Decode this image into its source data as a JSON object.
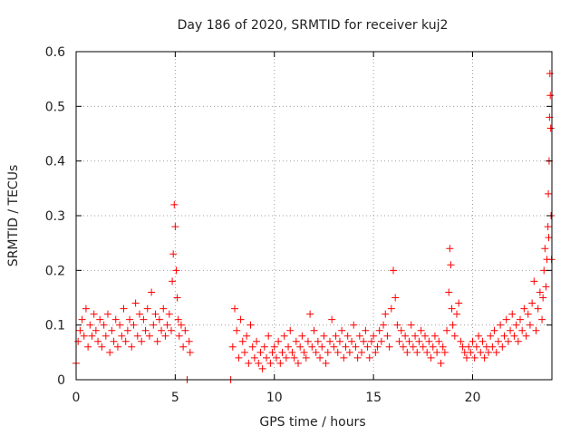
{
  "chart_data": {
    "type": "scatter",
    "title": "Day 186 of 2020, SRMTID for receiver kuj2",
    "xlabel": "GPS time / hours",
    "ylabel": "SRMTID / TECUs",
    "xlim": [
      0,
      24
    ],
    "ylim": [
      0,
      0.6
    ],
    "x_ticks": [
      0,
      5,
      10,
      15,
      20
    ],
    "x_tick_labels": [
      "0",
      "5",
      "10",
      "15",
      "20"
    ],
    "y_ticks": [
      0,
      0.1,
      0.2,
      0.3,
      0.4,
      0.5,
      0.6
    ],
    "y_tick_labels": [
      "0",
      "0.1",
      "0.2",
      "0.3",
      "0.4",
      "0.5",
      "0.6"
    ],
    "grid": true,
    "marker": "+",
    "color": "#ff0000",
    "series": [
      {
        "name": "SRMTID",
        "x": [
          0.0,
          0.1,
          0.2,
          0.3,
          0.4,
          0.5,
          0.6,
          0.7,
          0.8,
          0.9,
          1.0,
          1.1,
          1.2,
          1.3,
          1.4,
          1.5,
          1.6,
          1.7,
          1.8,
          1.9,
          2.0,
          2.1,
          2.2,
          2.3,
          2.4,
          2.5,
          2.6,
          2.7,
          2.8,
          2.9,
          3.0,
          3.1,
          3.2,
          3.3,
          3.4,
          3.5,
          3.6,
          3.7,
          3.8,
          3.9,
          4.0,
          4.1,
          4.2,
          4.3,
          4.4,
          4.5,
          4.6,
          4.7,
          4.8,
          4.85,
          4.9,
          4.95,
          5.0,
          5.05,
          5.1,
          5.15,
          5.2,
          5.3,
          5.4,
          5.5,
          5.6,
          5.7,
          5.75,
          7.8,
          7.9,
          8.0,
          8.1,
          8.2,
          8.3,
          8.4,
          8.5,
          8.6,
          8.7,
          8.8,
          8.9,
          9.0,
          9.1,
          9.2,
          9.3,
          9.4,
          9.5,
          9.6,
          9.7,
          9.8,
          9.9,
          10.0,
          10.1,
          10.2,
          10.3,
          10.4,
          10.5,
          10.6,
          10.7,
          10.8,
          10.9,
          11.0,
          11.1,
          11.2,
          11.3,
          11.4,
          11.5,
          11.6,
          11.7,
          11.8,
          11.9,
          12.0,
          12.1,
          12.2,
          12.3,
          12.4,
          12.5,
          12.6,
          12.7,
          12.8,
          12.9,
          13.0,
          13.1,
          13.2,
          13.3,
          13.4,
          13.5,
          13.6,
          13.7,
          13.8,
          13.9,
          14.0,
          14.1,
          14.2,
          14.3,
          14.4,
          14.5,
          14.6,
          14.7,
          14.8,
          14.9,
          15.0,
          15.1,
          15.2,
          15.3,
          15.4,
          15.5,
          15.6,
          15.7,
          15.8,
          15.9,
          16.0,
          16.1,
          16.2,
          16.3,
          16.4,
          16.5,
          16.6,
          16.7,
          16.8,
          16.9,
          17.0,
          17.1,
          17.2,
          17.3,
          17.4,
          17.5,
          17.6,
          17.7,
          17.8,
          17.9,
          18.0,
          18.1,
          18.2,
          18.3,
          18.4,
          18.5,
          18.6,
          18.7,
          18.8,
          18.85,
          18.9,
          18.95,
          19.0,
          19.1,
          19.2,
          19.3,
          19.4,
          19.5,
          19.6,
          19.7,
          19.8,
          19.9,
          20.0,
          20.1,
          20.2,
          20.3,
          20.4,
          20.5,
          20.6,
          20.7,
          20.8,
          20.9,
          21.0,
          21.1,
          21.2,
          21.3,
          21.4,
          21.5,
          21.6,
          21.7,
          21.8,
          21.9,
          22.0,
          22.1,
          22.2,
          22.3,
          22.4,
          22.5,
          22.6,
          22.7,
          22.8,
          22.9,
          23.0,
          23.1,
          23.2,
          23.3,
          23.4,
          23.5,
          23.55,
          23.6,
          23.65,
          23.7,
          23.75,
          23.8,
          23.82,
          23.84,
          23.86,
          23.88,
          23.9,
          23.92,
          23.94,
          23.96,
          23.98
        ],
        "y": [
          0.03,
          0.07,
          0.09,
          0.11,
          0.08,
          0.13,
          0.06,
          0.1,
          0.08,
          0.12,
          0.09,
          0.07,
          0.11,
          0.06,
          0.1,
          0.08,
          0.12,
          0.05,
          0.09,
          0.07,
          0.11,
          0.06,
          0.1,
          0.08,
          0.13,
          0.07,
          0.09,
          0.11,
          0.06,
          0.1,
          0.14,
          0.08,
          0.12,
          0.07,
          0.11,
          0.09,
          0.13,
          0.08,
          0.16,
          0.1,
          0.12,
          0.07,
          0.11,
          0.09,
          0.13,
          0.08,
          0.1,
          0.12,
          0.09,
          0.18,
          0.23,
          0.32,
          0.28,
          0.2,
          0.15,
          0.11,
          0.08,
          0.1,
          0.06,
          0.09,
          0.0,
          0.07,
          0.05,
          0.0,
          0.06,
          0.13,
          0.09,
          0.04,
          0.11,
          0.07,
          0.05,
          0.08,
          0.03,
          0.1,
          0.06,
          0.04,
          0.07,
          0.03,
          0.05,
          0.02,
          0.06,
          0.04,
          0.08,
          0.03,
          0.05,
          0.06,
          0.04,
          0.07,
          0.03,
          0.05,
          0.08,
          0.04,
          0.06,
          0.09,
          0.05,
          0.04,
          0.07,
          0.03,
          0.06,
          0.08,
          0.05,
          0.04,
          0.07,
          0.12,
          0.06,
          0.09,
          0.05,
          0.07,
          0.04,
          0.06,
          0.08,
          0.03,
          0.05,
          0.07,
          0.11,
          0.06,
          0.08,
          0.05,
          0.07,
          0.09,
          0.04,
          0.06,
          0.08,
          0.05,
          0.07,
          0.1,
          0.06,
          0.04,
          0.08,
          0.05,
          0.07,
          0.09,
          0.06,
          0.04,
          0.07,
          0.08,
          0.05,
          0.06,
          0.09,
          0.07,
          0.1,
          0.12,
          0.08,
          0.06,
          0.13,
          0.2,
          0.15,
          0.1,
          0.07,
          0.09,
          0.06,
          0.08,
          0.05,
          0.07,
          0.1,
          0.06,
          0.08,
          0.05,
          0.07,
          0.09,
          0.06,
          0.08,
          0.05,
          0.07,
          0.04,
          0.06,
          0.08,
          0.05,
          0.07,
          0.03,
          0.06,
          0.05,
          0.09,
          0.16,
          0.24,
          0.21,
          0.13,
          0.1,
          0.08,
          0.12,
          0.14,
          0.07,
          0.06,
          0.05,
          0.04,
          0.06,
          0.05,
          0.07,
          0.04,
          0.06,
          0.08,
          0.05,
          0.07,
          0.04,
          0.06,
          0.05,
          0.08,
          0.06,
          0.09,
          0.05,
          0.07,
          0.1,
          0.06,
          0.08,
          0.11,
          0.07,
          0.09,
          0.12,
          0.08,
          0.1,
          0.07,
          0.11,
          0.09,
          0.13,
          0.08,
          0.12,
          0.1,
          0.14,
          0.18,
          0.09,
          0.13,
          0.16,
          0.11,
          0.15,
          0.2,
          0.24,
          0.17,
          0.22,
          0.28,
          0.34,
          0.26,
          0.4,
          0.48,
          0.56,
          0.52,
          0.46,
          0.3,
          0.22
        ]
      }
    ]
  }
}
